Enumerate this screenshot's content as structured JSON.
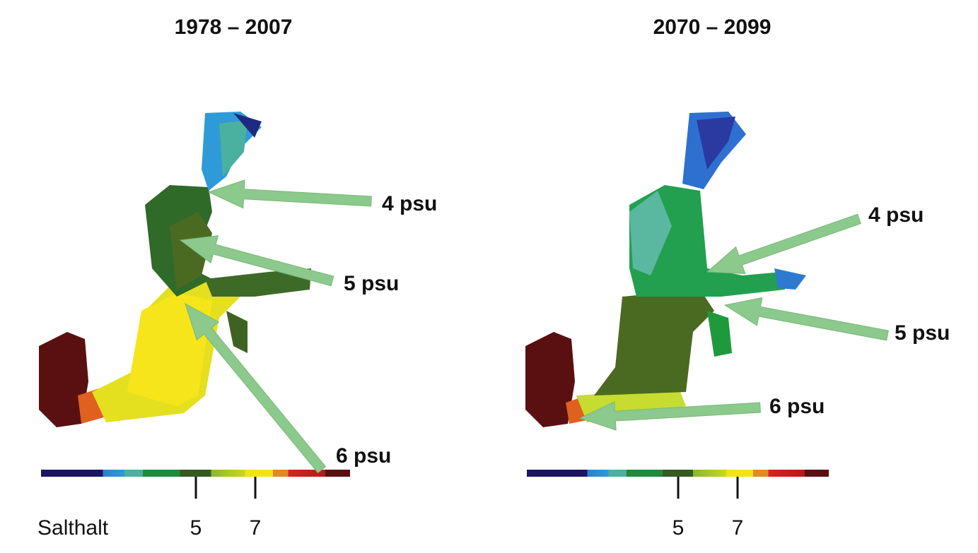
{
  "panels": [
    {
      "title": "1978 – 2007",
      "labels": [
        "4 psu",
        "5 psu",
        "6 psu"
      ],
      "ticks": [
        "5",
        "7"
      ]
    },
    {
      "title": "2070 – 2099",
      "labels": [
        "4 psu",
        "5 psu",
        "6 psu"
      ],
      "ticks": [
        "5",
        "7"
      ]
    }
  ],
  "scale_label": "Salthalt"
}
